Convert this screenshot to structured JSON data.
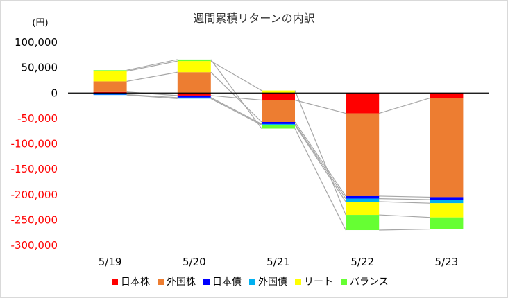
{
  "chart_data": {
    "type": "bar",
    "stacked": true,
    "title": "週間累積リターンの内訳",
    "ylabel": "(円)",
    "xlabel": "",
    "categories": [
      "5/19",
      "5/20",
      "5/21",
      "5/22",
      "5/23"
    ],
    "ylim": [
      -300000,
      100000
    ],
    "yticks": [
      100000,
      50000,
      0,
      -50000,
      -100000,
      -150000,
      -200000,
      -250000,
      -300000
    ],
    "ytick_labels": [
      "100,000",
      "50,000",
      "0",
      "-50,000",
      "-100,000",
      "-150,000",
      "-200,000",
      "-250,000",
      "-300,000"
    ],
    "grid": false,
    "connector_lines": true,
    "legend_position": "bottom",
    "series": [
      {
        "name": "日本株",
        "color": "#ff0000",
        "values": [
          2000,
          -5000,
          -14000,
          -40000,
          -10000
        ]
      },
      {
        "name": "外国株",
        "color": "#ed7d31",
        "values": [
          21000,
          41000,
          -43000,
          -163000,
          -195000
        ]
      },
      {
        "name": "日本債",
        "color": "#0000ff",
        "values": [
          -3000,
          -4000,
          -4000,
          -5000,
          -5000
        ]
      },
      {
        "name": "外国債",
        "color": "#00b0f0",
        "values": [
          -1000,
          -2000,
          -2000,
          -6000,
          -7000
        ]
      },
      {
        "name": "リート",
        "color": "#ffff00",
        "values": [
          20000,
          22000,
          5000,
          -26000,
          -28000
        ]
      },
      {
        "name": "バランス",
        "color": "#66ff33",
        "values": [
          2000,
          3000,
          -7000,
          -30000,
          -23000
        ]
      }
    ]
  }
}
